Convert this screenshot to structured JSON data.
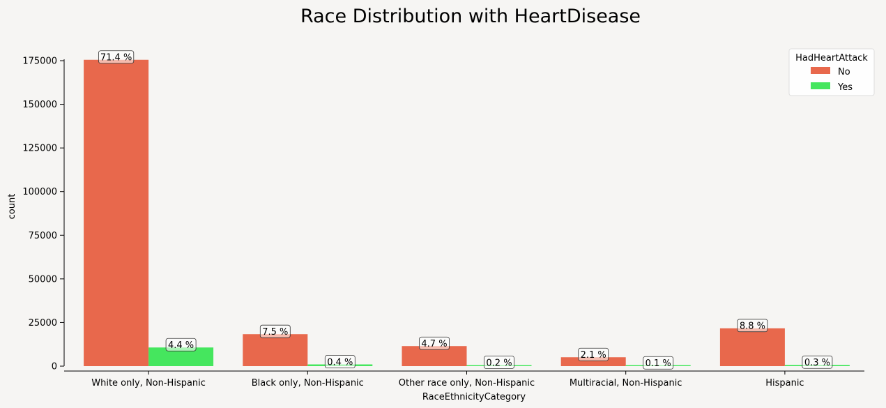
{
  "chart_data": {
    "type": "bar",
    "title": "Race Distribution with HeartDisease",
    "xlabel": "RaceEthnicityCategory",
    "ylabel": "count",
    "ylim": [
      0,
      175000
    ],
    "yticks": [
      0,
      25000,
      50000,
      75000,
      100000,
      125000,
      150000,
      175000
    ],
    "categories": [
      "White only, Non-Hispanic",
      "Black only, Non-Hispanic",
      "Other race only, Non-Hispanic",
      "Multiracial, Non-Hispanic",
      "Hispanic"
    ],
    "series": [
      {
        "name": "No",
        "color": "#e8684c",
        "values": [
          175500,
          18300,
          11500,
          5100,
          21700
        ],
        "labels": [
          "71.4 %",
          "7.5 %",
          "4.7 %",
          "2.1 %",
          "8.8 %"
        ]
      },
      {
        "name": "Yes",
        "color": "#45e65e",
        "values": [
          10700,
          1000,
          600,
          300,
          700
        ],
        "labels": [
          "4.4 %",
          "0.4 %",
          "0.2 %",
          "0.1 %",
          "0.3 %"
        ]
      }
    ],
    "legend": {
      "title": "HadHeartAttack",
      "position": "top-right"
    },
    "grid": false
  }
}
